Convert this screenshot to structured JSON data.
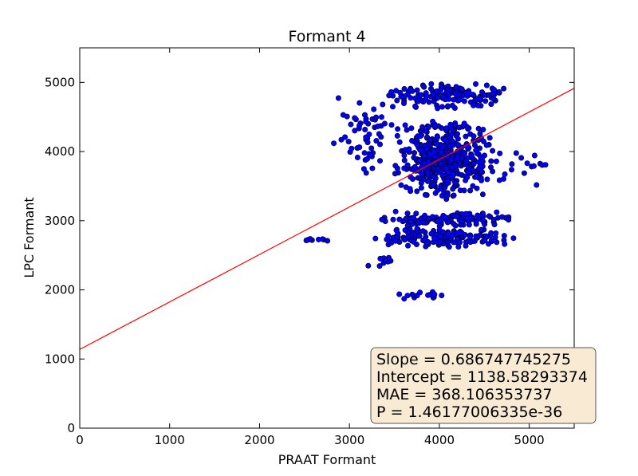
{
  "chart_data": {
    "type": "scatter",
    "title": "Formant 4",
    "xlabel": "PRAAT Formant",
    "ylabel": "LPC Formant",
    "xlim": [
      0,
      5500
    ],
    "ylim": [
      0,
      5500
    ],
    "xticks": [
      0,
      1000,
      2000,
      3000,
      4000,
      5000
    ],
    "yticks": [
      0,
      1000,
      2000,
      3000,
      4000,
      5000
    ],
    "grid": false,
    "marker_color": "#0000ff",
    "line_color": "#ff0000",
    "fit_line": {
      "slope": 0.686747745275,
      "intercept": 1138.58293374
    },
    "clusters": [
      {
        "cx": [
          3300,
          4900
        ],
        "cy": [
          4600,
          5000
        ],
        "count": 140
      },
      {
        "cx": [
          3500,
          4600
        ],
        "cy": [
          3300,
          4500
        ],
        "count": 420
      },
      {
        "cx": [
          2800,
          3500
        ],
        "cy": [
          3600,
          4800
        ],
        "count": 55
      },
      {
        "cx": [
          3000,
          5300
        ],
        "cy": [
          3400,
          4200
        ],
        "count": 80
      },
      {
        "cx": [
          3300,
          4900
        ],
        "cy": [
          2900,
          3150
        ],
        "count": 120
      },
      {
        "cx": [
          3200,
          4900
        ],
        "cy": [
          2600,
          2900
        ],
        "count": 150
      },
      {
        "cx": [
          2500,
          2900
        ],
        "cy": [
          2700,
          2760
        ],
        "count": 8
      },
      {
        "cx": [
          3200,
          3500
        ],
        "cy": [
          2300,
          2500
        ],
        "count": 8
      },
      {
        "cx": [
          3500,
          4100
        ],
        "cy": [
          1860,
          1980
        ],
        "count": 14
      }
    ],
    "stats": {
      "slope": "Slope = 0.686747745275",
      "intercept": "Intercept = 1138.58293374",
      "mae": "MAE = 368.106353737",
      "p": "P = 1.46177006335e-36"
    },
    "stats_box_color": "#f9ebd3"
  }
}
